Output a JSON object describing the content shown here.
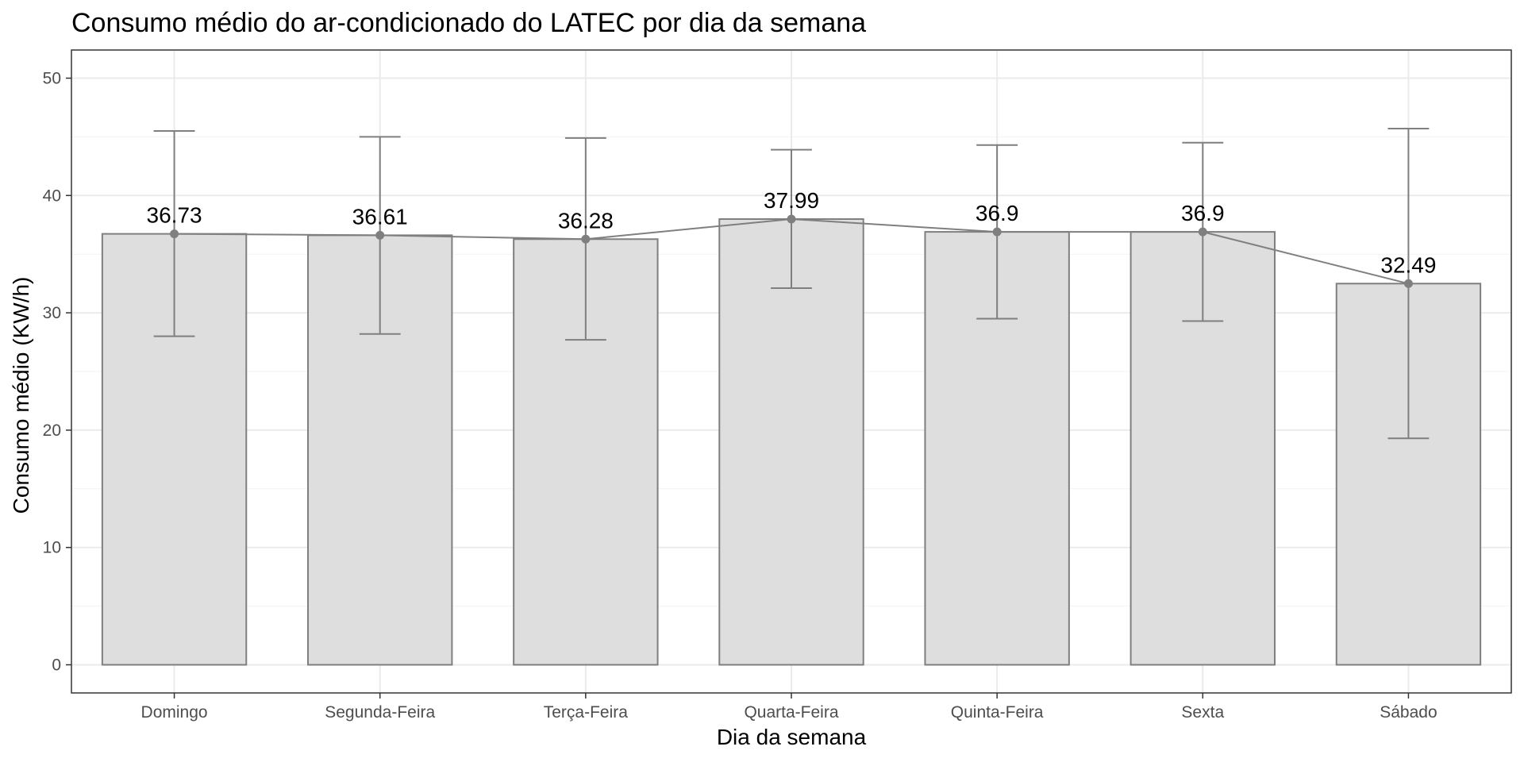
{
  "chart_data": {
    "type": "bar",
    "title": "Consumo médio do ar-condicionado do LATEC por dia da semana",
    "xlabel": "Dia da semana",
    "ylabel": "Consumo médio (KW/h)",
    "categories": [
      "Domingo",
      "Segunda-Feira",
      "Terça-Feira",
      "Quarta-Feira",
      "Quinta-Feira",
      "Sexta",
      "Sábado"
    ],
    "values": [
      36.73,
      36.61,
      36.28,
      37.99,
      36.9,
      36.9,
      32.49
    ],
    "value_labels": [
      "36.73",
      "36.61",
      "36.28",
      "37.99",
      "36.9",
      "36.9",
      "32.49"
    ],
    "error_low": [
      28.0,
      28.2,
      27.7,
      32.1,
      29.5,
      29.3,
      19.3
    ],
    "error_high": [
      45.5,
      45.0,
      44.9,
      43.9,
      44.3,
      44.5,
      45.7
    ],
    "overlay": "line with points through bar means",
    "ylim": [
      -2.4,
      52.4
    ],
    "yticks": [
      0,
      10,
      20,
      30,
      40,
      50
    ],
    "ytick_labels": [
      "0",
      "10",
      "20",
      "30",
      "40",
      "50"
    ],
    "grid": true,
    "legend": "none",
    "colors": {
      "bar_fill": "#dedede",
      "bar_stroke": "#7f7f7f",
      "line": "#7f7f7f",
      "error_bar": "#7f7f7f",
      "point": "#7f7f7f"
    }
  }
}
